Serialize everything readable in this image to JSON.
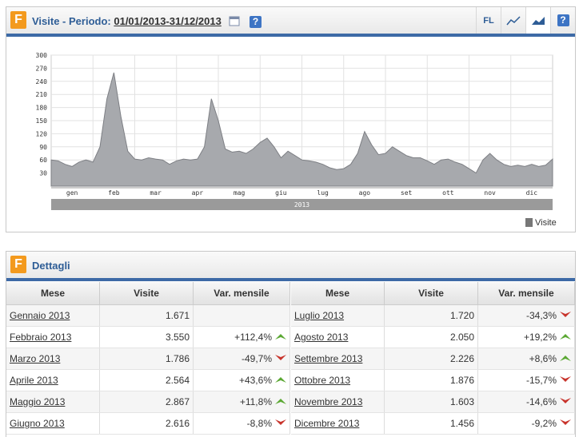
{
  "header": {
    "logo": "F",
    "title": "Visite - Periodo:",
    "period": "01/01/2013-31/12/2013",
    "help": "?",
    "buttons": [
      "FL",
      "?"
    ]
  },
  "chart_data": {
    "type": "area",
    "series": [
      {
        "name": "Visite",
        "color": "#a7a9ad",
        "values": [
          60,
          58,
          50,
          45,
          55,
          60,
          55,
          90,
          200,
          260,
          160,
          80,
          62,
          60,
          65,
          62,
          60,
          50,
          58,
          62,
          60,
          62,
          90,
          200,
          150,
          85,
          78,
          80,
          75,
          85,
          100,
          110,
          90,
          65,
          80,
          70,
          60,
          58,
          55,
          50,
          42,
          38,
          40,
          50,
          75,
          125,
          95,
          72,
          75,
          90,
          80,
          70,
          65,
          65,
          58,
          50,
          60,
          62,
          55,
          50,
          40,
          30,
          60,
          75,
          60,
          50,
          45,
          48,
          45,
          50,
          45,
          48,
          62
        ]
      }
    ],
    "x_labels": [
      "gen",
      "feb",
      "mar",
      "apr",
      "mag",
      "giu",
      "lug",
      "ago",
      "set",
      "ott",
      "nov",
      "dic"
    ],
    "period_label": "2013",
    "ylim": [
      0,
      300
    ],
    "yticks": [
      30,
      60,
      90,
      120,
      150,
      180,
      210,
      240,
      270,
      300
    ],
    "grid": true,
    "legend": "bottom-right"
  },
  "details": {
    "logo": "F",
    "title": "Dettagli",
    "columns": [
      "Mese",
      "Visite",
      "Var. mensile"
    ],
    "left": [
      {
        "mese": "Gennaio 2013",
        "visite": "1.671",
        "var": null,
        "trend": null
      },
      {
        "mese": "Febbraio 2013",
        "visite": "3.550",
        "var": "+112,4%",
        "trend": "up"
      },
      {
        "mese": "Marzo 2013",
        "visite": "1.786",
        "var": "-49,7%",
        "trend": "down"
      },
      {
        "mese": "Aprile 2013",
        "visite": "2.564",
        "var": "+43,6%",
        "trend": "up"
      },
      {
        "mese": "Maggio 2013",
        "visite": "2.867",
        "var": "+11,8%",
        "trend": "up"
      },
      {
        "mese": "Giugno 2013",
        "visite": "2.616",
        "var": "-8,8%",
        "trend": "down"
      }
    ],
    "right": [
      {
        "mese": "Luglio 2013",
        "visite": "1.720",
        "var": "-34,3%",
        "trend": "down"
      },
      {
        "mese": "Agosto 2013",
        "visite": "2.050",
        "var": "+19,2%",
        "trend": "up"
      },
      {
        "mese": "Settembre 2013",
        "visite": "2.226",
        "var": "+8,6%",
        "trend": "up"
      },
      {
        "mese": "Ottobre 2013",
        "visite": "1.876",
        "var": "-15,7%",
        "trend": "down"
      },
      {
        "mese": "Novembre 2013",
        "visite": "1.603",
        "var": "-14,6%",
        "trend": "down"
      },
      {
        "mese": "Dicembre 2013",
        "visite": "1.456",
        "var": "-9,2%",
        "trend": "down"
      }
    ]
  }
}
